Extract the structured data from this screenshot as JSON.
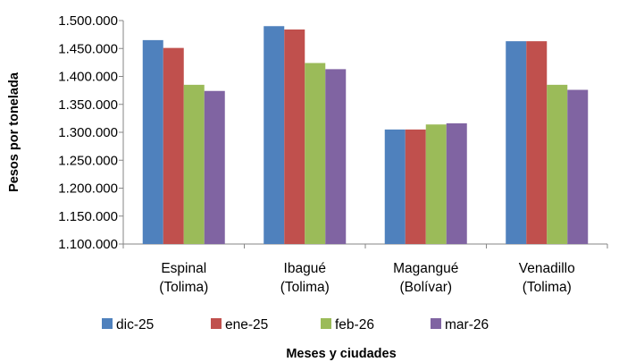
{
  "chart_data": {
    "type": "bar",
    "title": "",
    "xlabel": "Meses y ciudades",
    "ylabel": "Pesos por tonelada",
    "ylim": [
      1100000,
      1500000
    ],
    "yticks": [
      1100000,
      1150000,
      1200000,
      1250000,
      1300000,
      1350000,
      1400000,
      1450000,
      1500000
    ],
    "ytick_labels": [
      "1.100.000",
      "1.150.000",
      "1.200.000",
      "1.250.000",
      "1.300.000",
      "1.350.000",
      "1.400.000",
      "1.450.000",
      "1.500.000"
    ],
    "categories": [
      [
        "Espinal",
        "(Tolima)"
      ],
      [
        "Ibagué",
        "(Tolima)"
      ],
      [
        "Magangué",
        "(Bolívar)"
      ],
      [
        "Venadillo",
        "(Tolima)"
      ]
    ],
    "series": [
      {
        "name": "dic-25",
        "color": "#4F81BD",
        "values": [
          1465000,
          1490000,
          1305000,
          1463000
        ]
      },
      {
        "name": "ene-25",
        "color": "#C0504D",
        "values": [
          1451000,
          1484000,
          1305000,
          1463000
        ]
      },
      {
        "name": "feb-26",
        "color": "#9BBB59",
        "values": [
          1385000,
          1424000,
          1314000,
          1385000
        ]
      },
      {
        "name": "mar-26",
        "color": "#8064A2",
        "values": [
          1374000,
          1413000,
          1316000,
          1376000
        ]
      }
    ],
    "grid": false,
    "legend_position": "bottom"
  }
}
